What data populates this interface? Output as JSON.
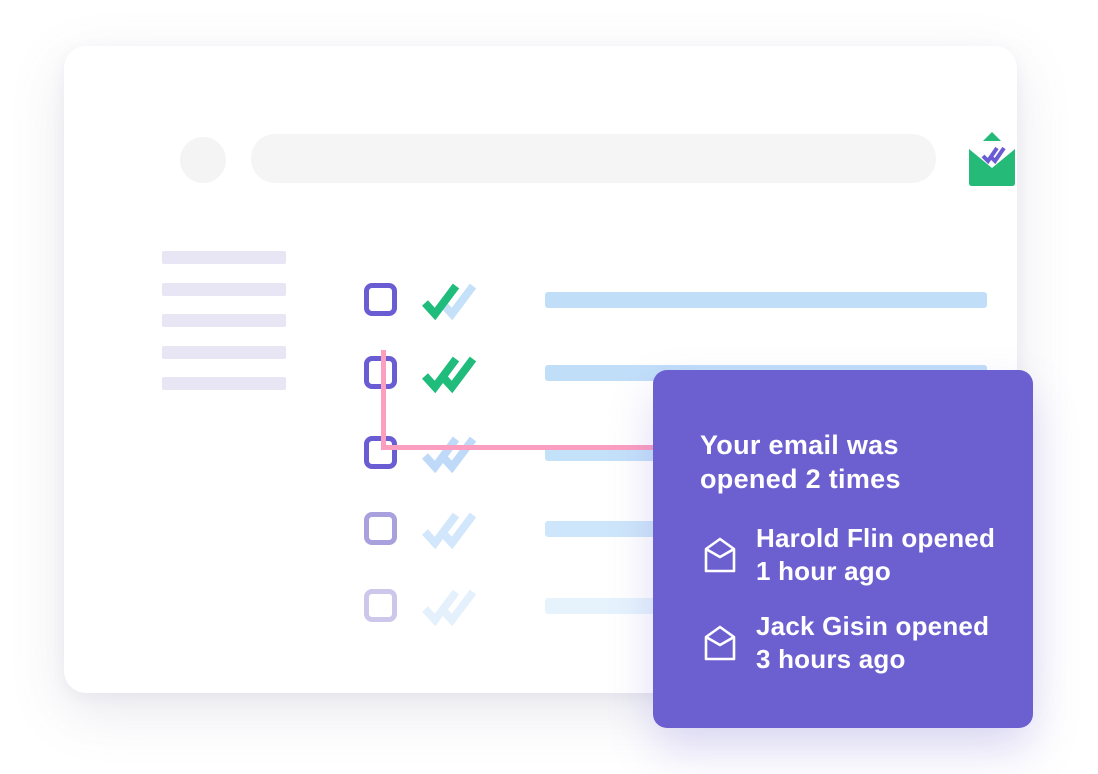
{
  "brand": {
    "logo_icon": "open-envelope-with-double-check",
    "logo_green": "#25BA78",
    "logo_check_purple": "#6A5CD3"
  },
  "topbar": {
    "search_placeholder": ""
  },
  "sidebar": {
    "placeholder_line_count": 5
  },
  "inbox": {
    "rows": [
      {
        "state": "opened-one-check-green",
        "checkbox_color": "#6A5CD3",
        "check1_color": "#1FBC7C",
        "check2_color": "#C5E0F9",
        "bar_color": "#C1DEF9"
      },
      {
        "state": "opened-two-checks-green",
        "checkbox_color": "#6A5CD3",
        "check1_color": "#1FBC7C",
        "check2_color": "#1FBC7C",
        "bar_color": "#C1DEF9"
      },
      {
        "state": "delivered-blue-checks",
        "checkbox_color": "#6A5CD3",
        "check1_color": "#BEDAF8",
        "check2_color": "#BEDAF8",
        "bar_color": "#C4E1FA"
      },
      {
        "state": "delivered-blue-checks-faded",
        "checkbox_color": "#A9A0DE",
        "check1_color": "#D2E7FB",
        "check2_color": "#D2E7FB",
        "bar_color": "#CEE6FB"
      },
      {
        "state": "delivered-blue-checks-fainter",
        "checkbox_color": "#CDC8EB",
        "check1_color": "#E4F1FD",
        "check2_color": "#E4F1FD",
        "bar_color": "#E6F3FD"
      }
    ],
    "row_offsets": [
      0,
      73,
      153,
      229,
      306
    ]
  },
  "connector": {
    "color": "#FC9EC0"
  },
  "tooltip": {
    "background": "#6C5FD0",
    "title": "Your email was opened 2 times",
    "opens": [
      {
        "line1": "Harold Flin opened",
        "line2": "1 hour ago"
      },
      {
        "line1": "Jack Gisin opened",
        "line2": "3 hours ago"
      }
    ]
  }
}
